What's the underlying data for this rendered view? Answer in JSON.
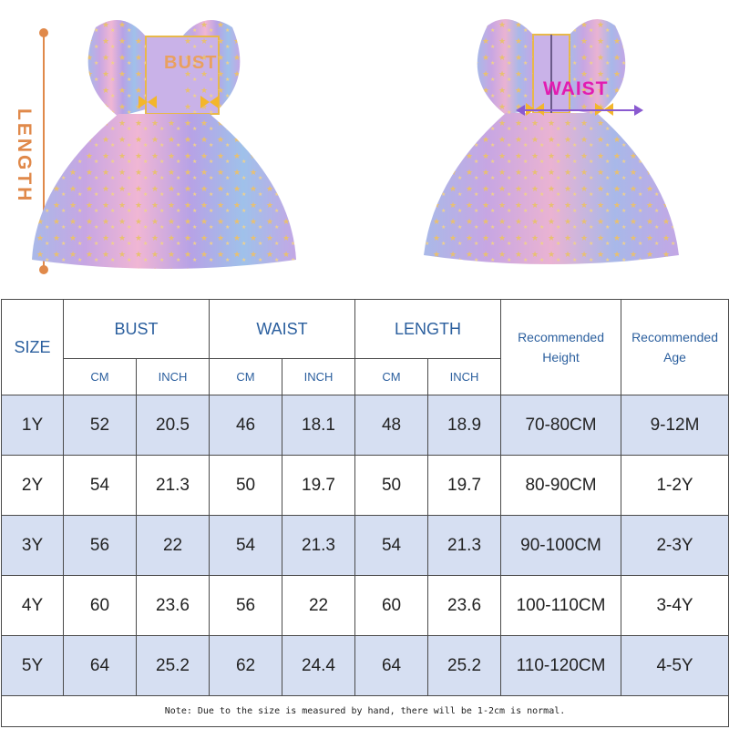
{
  "labels": {
    "length": "LENGTH",
    "bust": "BUST",
    "waist": "WAIST"
  },
  "colors": {
    "length_label": "#e0894a",
    "bust_label": "#e9a060",
    "waist_label": "#e21cb1",
    "header_text": "#2b5f9e",
    "row_shade": "#d6dff2"
  },
  "table": {
    "headers": {
      "size": "SIZE",
      "bust": "BUST",
      "waist": "WAIST",
      "length": "LENGTH",
      "recommended_height": "Recommended Height",
      "recommended_age": "Recommended Age",
      "cm": "CM",
      "inch": "INCH"
    },
    "rows": [
      {
        "size": "1Y",
        "bust_cm": "52",
        "bust_inch": "20.5",
        "waist_cm": "46",
        "waist_inch": "18.1",
        "length_cm": "48",
        "length_inch": "18.9",
        "height": "70-80CM",
        "age": "9-12M"
      },
      {
        "size": "2Y",
        "bust_cm": "54",
        "bust_inch": "21.3",
        "waist_cm": "50",
        "waist_inch": "19.7",
        "length_cm": "50",
        "length_inch": "19.7",
        "height": "80-90CM",
        "age": "1-2Y"
      },
      {
        "size": "3Y",
        "bust_cm": "56",
        "bust_inch": "22",
        "waist_cm": "54",
        "waist_inch": "21.3",
        "length_cm": "54",
        "length_inch": "21.3",
        "height": "90-100CM",
        "age": "2-3Y"
      },
      {
        "size": "4Y",
        "bust_cm": "60",
        "bust_inch": "23.6",
        "waist_cm": "56",
        "waist_inch": "22",
        "length_cm": "60",
        "length_inch": "23.6",
        "height": "100-110CM",
        "age": "3-4Y"
      },
      {
        "size": "5Y",
        "bust_cm": "64",
        "bust_inch": "25.2",
        "waist_cm": "62",
        "waist_inch": "24.4",
        "length_cm": "64",
        "length_inch": "25.2",
        "height": "110-120CM",
        "age": "4-5Y"
      }
    ],
    "note": "Note: Due to the size is measured by hand, there will be 1-2cm is normal."
  }
}
